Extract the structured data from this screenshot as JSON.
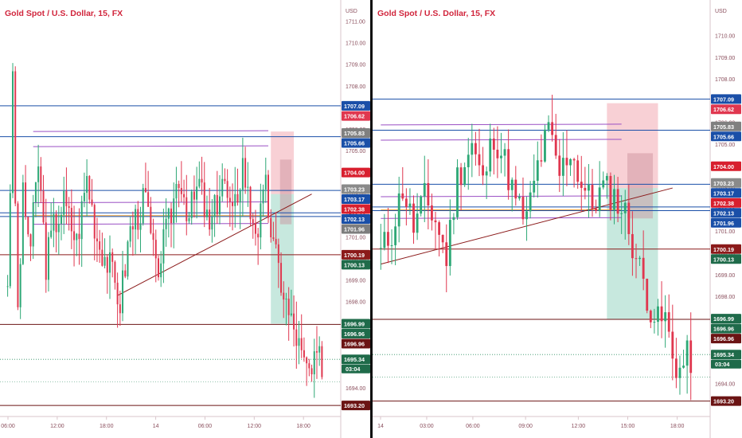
{
  "divider_color": "#0c0c0c",
  "charts": [
    {
      "title": "Gold Spot / U.S. Dollar, 15, FX",
      "currency": "USD",
      "ylim": [
        1692.8,
        1711.85
      ],
      "yticks": [
        "1711.00",
        "1710.00",
        "1709.00",
        "1708.00",
        "1707.00",
        "1706.00",
        "1705.00",
        "1704.00",
        "1703.00",
        "1702.00",
        "1701.00",
        "1700.00",
        "1699.00",
        "1698.00",
        "1697.00",
        "1696.00",
        "1695.00",
        "1694.00"
      ],
      "xticks": [
        {
          "label": "06:00",
          "t": 0.0
        },
        {
          "label": "12:00",
          "t": 0.148
        },
        {
          "label": "18:00",
          "t": 0.296
        },
        {
          "label": "14",
          "t": 0.444
        },
        {
          "label": "06:00",
          "t": 0.592
        },
        {
          "label": "12:00",
          "t": 0.74
        },
        {
          "label": "18:00",
          "t": 0.888
        }
      ],
      "bar_count": 124,
      "seed": 3,
      "candles_anchor": [
        [
          0,
          1699.0
        ],
        [
          2,
          1708.0
        ],
        [
          4,
          1697.5
        ],
        [
          6,
          1702.8
        ],
        [
          9,
          1700.6
        ],
        [
          12,
          1704.5
        ],
        [
          15,
          1699.8
        ],
        [
          18,
          1701.5
        ],
        [
          22,
          1702.6
        ],
        [
          27,
          1700.8
        ],
        [
          31,
          1703.8
        ],
        [
          35,
          1701.0
        ],
        [
          40,
          1699.6
        ],
        [
          44,
          1698.0
        ],
        [
          48,
          1701.4
        ],
        [
          54,
          1702.8
        ],
        [
          58,
          1699.3
        ],
        [
          63,
          1701.6
        ],
        [
          67,
          1704.0
        ],
        [
          71,
          1702.0
        ],
        [
          75,
          1703.5
        ],
        [
          79,
          1701.2
        ],
        [
          84,
          1703.8
        ],
        [
          88,
          1701.8
        ],
        [
          92,
          1704.5
        ],
        [
          95,
          1702.2
        ],
        [
          98,
          1701.4
        ],
        [
          101,
          1703.2
        ],
        [
          104,
          1700.5
        ],
        [
          107,
          1699.0
        ],
        [
          110,
          1697.4
        ],
        [
          113,
          1696.4
        ],
        [
          116,
          1695.0
        ],
        [
          119,
          1694.6
        ],
        [
          121,
          1695.3
        ]
      ],
      "levels": [
        {
          "value": 1707.09,
          "label": "1707.09",
          "color": "#1a4fa8"
        },
        {
          "value": 1706.62,
          "label": "1706.62",
          "color": "#e0374f"
        },
        {
          "value": 1705.83,
          "label": "1705.83",
          "color": "#808080"
        },
        {
          "value": 1705.66,
          "label": "1705.66",
          "color": "#1a4fa8"
        },
        {
          "value": 1704.0,
          "label": "1704.00",
          "color": "#d81f2e"
        },
        {
          "value": 1703.23,
          "label": "1703.23",
          "color": "#8a8a8a"
        },
        {
          "value": 1703.17,
          "label": "1703.17",
          "color": "#1a4fa8"
        },
        {
          "value": 1702.38,
          "label": "1702.38",
          "color": "#d81f2e"
        },
        {
          "value": 1702.13,
          "label": "1702.13",
          "color": "#1a4fa8"
        },
        {
          "value": 1701.96,
          "label": "1701.96",
          "color": "#7d7d7d"
        },
        {
          "value": 1700.19,
          "label": "1700.19",
          "color": "#8b1a1a"
        },
        {
          "value": 1700.13,
          "label": "1700.13",
          "color": "#1f6b4a"
        },
        {
          "value": 1696.99,
          "label": "1696.99",
          "color": "#1f6b4a"
        },
        {
          "value": 1696.96,
          "label": "1696.96",
          "color": "#1f6b4a"
        },
        {
          "value": 1696.96,
          "label": "1696.96",
          "color": "#6b1414"
        },
        {
          "value": 1695.34,
          "label": "1695.34",
          "color": "#1f6b4a"
        },
        {
          "value": 1693.2,
          "label": "1693.20",
          "color": "#6b1414"
        }
      ],
      "countdown": "03:04"
    },
    {
      "title": "Gold Spot / U.S. Dollar, 15, FX",
      "currency": "USD",
      "ylim": [
        1692.6,
        1711.5
      ],
      "yticks": [
        "1710.00",
        "1709.00",
        "1708.00",
        "1707.00",
        "1706.00",
        "1705.00",
        "1704.00",
        "1703.00",
        "1702.00",
        "1701.00",
        "1700.00",
        "1699.00",
        "1698.00",
        "1697.00",
        "1696.00",
        "1695.00",
        "1694.00"
      ],
      "xticks": [
        {
          "label": "14",
          "t": 0.0
        },
        {
          "label": "03:00",
          "t": 0.14
        },
        {
          "label": "06:00",
          "t": 0.28
        },
        {
          "label": "09:00",
          "t": 0.44
        },
        {
          "label": "12:00",
          "t": 0.6
        },
        {
          "label": "15:00",
          "t": 0.75
        },
        {
          "label": "18:00",
          "t": 0.9
        }
      ],
      "bar_count": 86,
      "seed": 11,
      "candles_anchor": [
        [
          0,
          1700.0
        ],
        [
          3,
          1701.0
        ],
        [
          6,
          1703.0
        ],
        [
          9,
          1701.2
        ],
        [
          12,
          1702.5
        ],
        [
          15,
          1701.5
        ],
        [
          18,
          1699.8
        ],
        [
          21,
          1703.5
        ],
        [
          25,
          1705.0
        ],
        [
          28,
          1703.2
        ],
        [
          31,
          1705.5
        ],
        [
          34,
          1704.2
        ],
        [
          37,
          1702.3
        ],
        [
          40,
          1701.5
        ],
        [
          43,
          1704.0
        ],
        [
          46,
          1705.6
        ],
        [
          49,
          1703.6
        ],
        [
          52,
          1704.8
        ],
        [
          55,
          1703.2
        ],
        [
          58,
          1702.2
        ],
        [
          61,
          1703.0
        ],
        [
          64,
          1702.6
        ],
        [
          67,
          1701.8
        ],
        [
          70,
          1699.8
        ],
        [
          72,
          1698.7
        ],
        [
          74,
          1697.5
        ],
        [
          76,
          1696.8
        ],
        [
          78,
          1697.0
        ],
        [
          80,
          1695.2
        ],
        [
          82,
          1694.6
        ],
        [
          84,
          1695.2
        ]
      ],
      "levels": [
        {
          "value": 1707.09,
          "label": "1707.09",
          "color": "#1a4fa8"
        },
        {
          "value": 1706.62,
          "label": "1706.62",
          "color": "#e0374f"
        },
        {
          "value": 1705.83,
          "label": "1705.83",
          "color": "#808080"
        },
        {
          "value": 1705.66,
          "label": "1705.66",
          "color": "#1a4fa8"
        },
        {
          "value": 1704.0,
          "label": "1704.00",
          "color": "#d81f2e"
        },
        {
          "value": 1703.23,
          "label": "1703.23",
          "color": "#8a8a8a"
        },
        {
          "value": 1703.17,
          "label": "1703.17",
          "color": "#1a4fa8"
        },
        {
          "value": 1702.38,
          "label": "1702.38",
          "color": "#d81f2e"
        },
        {
          "value": 1702.13,
          "label": "1702.13",
          "color": "#1a4fa8"
        },
        {
          "value": 1701.96,
          "label": "1701.96",
          "color": "#1a4fa8"
        },
        {
          "value": 1700.19,
          "label": "1700.19",
          "color": "#8b1a1a"
        },
        {
          "value": 1700.13,
          "label": "1700.13",
          "color": "#1f6b4a"
        },
        {
          "value": 1696.99,
          "label": "1696.99",
          "color": "#1f6b4a"
        },
        {
          "value": 1696.96,
          "label": "1696.96",
          "color": "#1f6b4a"
        },
        {
          "value": 1696.96,
          "label": "1696.96",
          "color": "#6b1414"
        },
        {
          "value": 1695.34,
          "label": "1695.34",
          "color": "#1f6b4a"
        },
        {
          "value": 1693.2,
          "label": "1693.20",
          "color": "#6b1414"
        }
      ],
      "countdown": "03:04"
    }
  ],
  "chart_data": [
    {
      "type": "candlestick",
      "title": "Gold Spot / U.S. Dollar, 15, FX",
      "ylabel": "USD",
      "ylim": [
        1692.8,
        1711.85
      ],
      "x_ticks": [
        "06:00",
        "12:00",
        "18:00",
        "14",
        "06:00",
        "12:00",
        "18:00"
      ],
      "horizontal_levels": [
        1707.09,
        1705.66,
        1703.17,
        1702.13,
        1701.96,
        1700.19,
        1700.13,
        1696.96,
        1693.2
      ],
      "last_price": 1695.34,
      "position_box": {
        "entry": 1703.0,
        "stop": 1705.9,
        "target": 1696.99
      }
    },
    {
      "type": "candlestick",
      "title": "Gold Spot / U.S. Dollar, 15, FX",
      "ylabel": "USD",
      "ylim": [
        1692.6,
        1711.5
      ],
      "x_ticks": [
        "14",
        "03:00",
        "06:00",
        "09:00",
        "12:00",
        "15:00",
        "18:00"
      ],
      "horizontal_levels": [
        1707.09,
        1705.66,
        1703.17,
        1702.13,
        1701.96,
        1700.19,
        1700.13,
        1696.96,
        1693.2
      ],
      "last_price": 1695.34,
      "position_box": {
        "entry": 1703.0,
        "stop": 1706.9,
        "target": 1696.96
      }
    }
  ]
}
